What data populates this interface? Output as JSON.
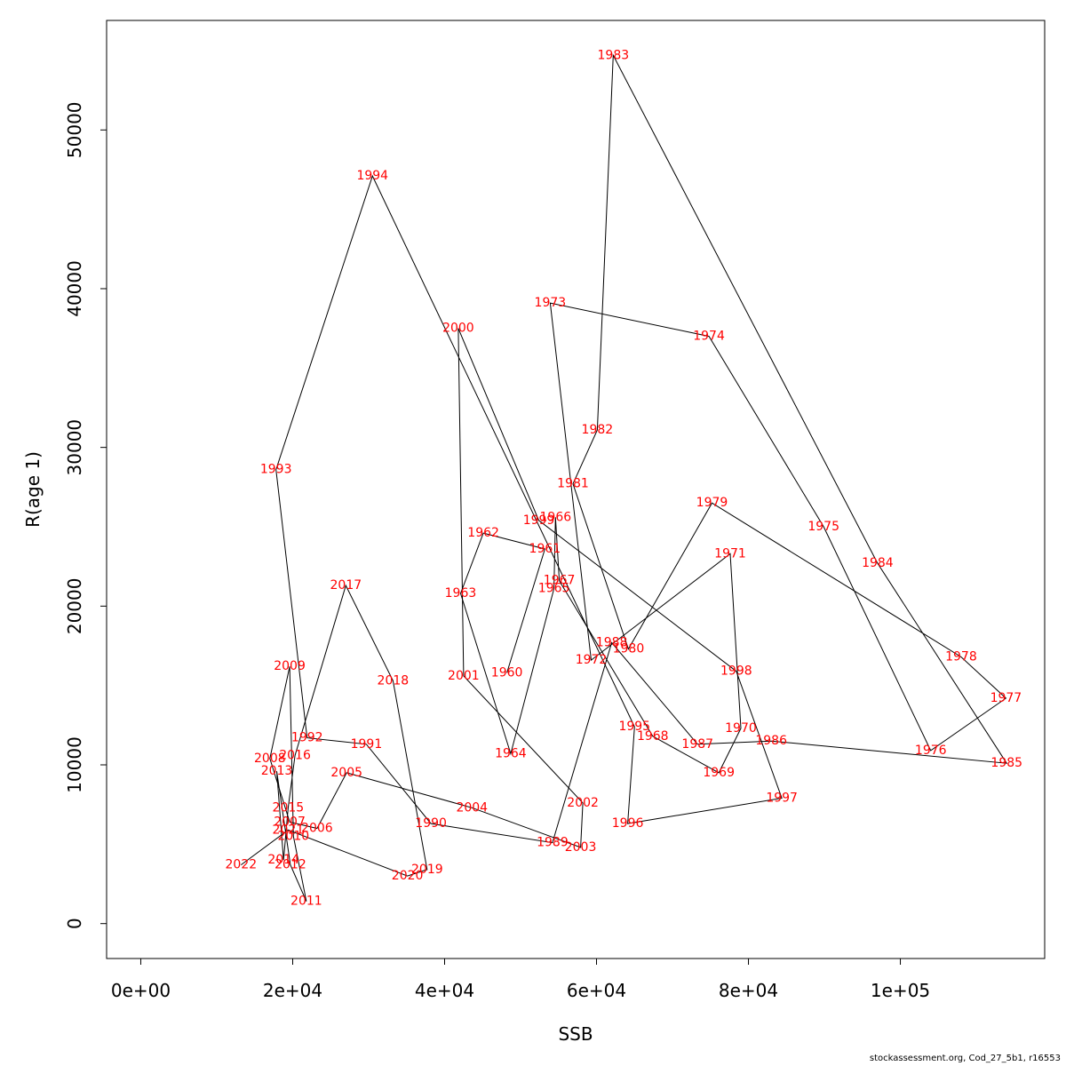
{
  "chart_data": {
    "type": "line",
    "xlabel": "SSB",
    "ylabel": "R(age 1)",
    "xlim": [
      -4500,
      119000
    ],
    "ylim": [
      -2200,
      56900
    ],
    "x_ticks": [
      {
        "value": 0,
        "label": "0e+00"
      },
      {
        "value": 20000,
        "label": "2e+04"
      },
      {
        "value": 40000,
        "label": "4e+04"
      },
      {
        "value": 60000,
        "label": "6e+04"
      },
      {
        "value": 80000,
        "label": "8e+04"
      },
      {
        "value": 100000,
        "label": "1e+05"
      }
    ],
    "y_ticks": [
      {
        "value": 0,
        "label": "0"
      },
      {
        "value": 10000,
        "label": "10000"
      },
      {
        "value": 20000,
        "label": "20000"
      },
      {
        "value": 30000,
        "label": "30000"
      },
      {
        "value": 40000,
        "label": "40000"
      },
      {
        "value": 50000,
        "label": "50000"
      }
    ],
    "grid": false,
    "line_color": "#000000",
    "label_color": "#ff0000",
    "points": [
      {
        "year": "1960",
        "x": 48200,
        "y": 15800
      },
      {
        "year": "1961",
        "x": 53200,
        "y": 23600
      },
      {
        "year": "1962",
        "x": 45100,
        "y": 24600
      },
      {
        "year": "1963",
        "x": 42100,
        "y": 20800
      },
      {
        "year": "1964",
        "x": 48700,
        "y": 10700
      },
      {
        "year": "1965",
        "x": 54400,
        "y": 21100
      },
      {
        "year": "1966",
        "x": 54600,
        "y": 25600
      },
      {
        "year": "1967",
        "x": 55100,
        "y": 21600
      },
      {
        "year": "1968",
        "x": 67400,
        "y": 11800
      },
      {
        "year": "1969",
        "x": 76100,
        "y": 9500
      },
      {
        "year": "1970",
        "x": 79000,
        "y": 12300
      },
      {
        "year": "1971",
        "x": 77600,
        "y": 23300
      },
      {
        "year": "1972",
        "x": 59300,
        "y": 16600
      },
      {
        "year": "1973",
        "x": 53900,
        "y": 39100
      },
      {
        "year": "1974",
        "x": 74800,
        "y": 37000
      },
      {
        "year": "1975",
        "x": 89900,
        "y": 25000
      },
      {
        "year": "1976",
        "x": 104000,
        "y": 10900
      },
      {
        "year": "1977",
        "x": 113900,
        "y": 14200
      },
      {
        "year": "1978",
        "x": 108000,
        "y": 16800
      },
      {
        "year": "1979",
        "x": 75200,
        "y": 26500
      },
      {
        "year": "1980",
        "x": 64200,
        "y": 17300
      },
      {
        "year": "1981",
        "x": 56900,
        "y": 27700
      },
      {
        "year": "1982",
        "x": 60100,
        "y": 31100
      },
      {
        "year": "1983",
        "x": 62200,
        "y": 54700
      },
      {
        "year": "1984",
        "x": 97000,
        "y": 22700
      },
      {
        "year": "1985",
        "x": 114000,
        "y": 10100
      },
      {
        "year": "1986",
        "x": 83000,
        "y": 11500
      },
      {
        "year": "1987",
        "x": 73300,
        "y": 11300
      },
      {
        "year": "1988",
        "x": 62000,
        "y": 17700
      },
      {
        "year": "1989",
        "x": 54200,
        "y": 5100
      },
      {
        "year": "1990",
        "x": 38200,
        "y": 6300
      },
      {
        "year": "1991",
        "x": 29700,
        "y": 11300
      },
      {
        "year": "1992",
        "x": 21900,
        "y": 11700
      },
      {
        "year": "1993",
        "x": 17800,
        "y": 28600
      },
      {
        "year": "1994",
        "x": 30500,
        "y": 47100
      },
      {
        "year": "1995",
        "x": 65000,
        "y": 12400
      },
      {
        "year": "1996",
        "x": 64100,
        "y": 6300
      },
      {
        "year": "1997",
        "x": 84400,
        "y": 7900
      },
      {
        "year": "1998",
        "x": 78400,
        "y": 15900
      },
      {
        "year": "1999",
        "x": 52400,
        "y": 25400
      },
      {
        "year": "2000",
        "x": 41800,
        "y": 37500
      },
      {
        "year": "2001",
        "x": 42500,
        "y": 15600
      },
      {
        "year": "2002",
        "x": 58200,
        "y": 7600
      },
      {
        "year": "2003",
        "x": 57900,
        "y": 4800
      },
      {
        "year": "2004",
        "x": 43600,
        "y": 7300
      },
      {
        "year": "2005",
        "x": 27100,
        "y": 9500
      },
      {
        "year": "2006",
        "x": 23200,
        "y": 6000
      },
      {
        "year": "2007",
        "x": 19600,
        "y": 6400
      },
      {
        "year": "2008",
        "x": 17000,
        "y": 10400
      },
      {
        "year": "2009",
        "x": 19600,
        "y": 16200
      },
      {
        "year": "2010",
        "x": 20100,
        "y": 5500
      },
      {
        "year": "2011",
        "x": 21800,
        "y": 1400
      },
      {
        "year": "2012",
        "x": 19700,
        "y": 3700
      },
      {
        "year": "2013",
        "x": 17900,
        "y": 9600
      },
      {
        "year": "2014",
        "x": 18800,
        "y": 4000
      },
      {
        "year": "2015",
        "x": 19400,
        "y": 7300
      },
      {
        "year": "2016",
        "x": 20300,
        "y": 10600
      },
      {
        "year": "2017",
        "x": 27000,
        "y": 21300
      },
      {
        "year": "2018",
        "x": 33200,
        "y": 15300
      },
      {
        "year": "2019",
        "x": 37700,
        "y": 3400
      },
      {
        "year": "2020",
        "x": 35100,
        "y": 3000
      },
      {
        "year": "2021",
        "x": 19400,
        "y": 5900
      },
      {
        "year": "2022",
        "x": 13200,
        "y": 3700
      }
    ]
  },
  "footer": {
    "credit": "stockassessment.org, Cod_27_5b1, r16553"
  }
}
